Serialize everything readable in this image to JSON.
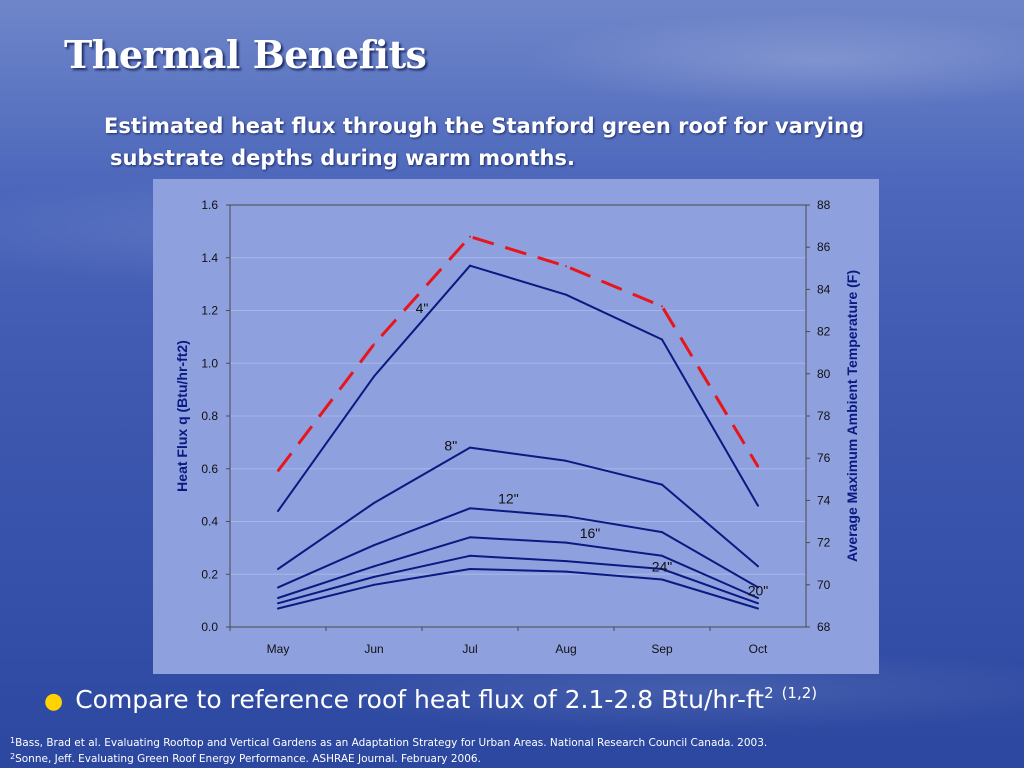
{
  "slide": {
    "title": "Thermal Benefits",
    "subtitle_line1": "Estimated heat flux through the Stanford green roof for varying",
    "subtitle_line2": "substrate depths during warm months.",
    "bullet_text": "Compare to reference roof heat flux of 2.1-2.8 Btu/hr-ft",
    "bullet_exponent": "2",
    "bullet_citation": "(1,2)",
    "references": [
      {
        "num": "1",
        "text": "Bass, Brad et al. Evaluating Rooftop and Vertical Gardens as an Adaptation Strategy for Urban Areas. National Research Council Canada. 2003."
      },
      {
        "num": "2",
        "text": "Sonne, Jeff. Evaluating Green Roof Energy Performance. ASHRAE Journal. February 2006."
      }
    ]
  },
  "chart_data": {
    "type": "line",
    "categories": [
      "May",
      "Jun",
      "Jul",
      "Aug",
      "Sep",
      "Oct"
    ],
    "ylabel": "Heat Flux q (Btu/hr-ft2)",
    "y2label": "Average Maximum Ambient Temperature (F)",
    "ylim": [
      0.0,
      1.6
    ],
    "y2lim": [
      68,
      88
    ],
    "yticks": [
      "0.0",
      "0.2",
      "0.4",
      "0.6",
      "0.8",
      "1.0",
      "1.2",
      "1.4",
      "1.6"
    ],
    "y2ticks": [
      "68",
      "70",
      "72",
      "74",
      "76",
      "78",
      "80",
      "82",
      "84",
      "86",
      "88"
    ],
    "grid": "horizontal",
    "series": [
      {
        "name": "4\"",
        "axis": "left",
        "values": [
          0.44,
          0.95,
          1.37,
          1.26,
          1.09,
          0.46
        ],
        "color": "#0a1a80",
        "dashed": false,
        "label_at": 1.5
      },
      {
        "name": "8\"",
        "axis": "left",
        "values": [
          0.22,
          0.47,
          0.68,
          0.63,
          0.54,
          0.23
        ],
        "color": "#0a1a80",
        "dashed": false,
        "label_at": 1.8
      },
      {
        "name": "12\"",
        "axis": "left",
        "values": [
          0.15,
          0.31,
          0.45,
          0.42,
          0.36,
          0.15
        ],
        "color": "#0a1a80",
        "dashed": false,
        "label_at": 2.4
      },
      {
        "name": "16\"",
        "axis": "left",
        "values": [
          0.11,
          0.23,
          0.34,
          0.32,
          0.27,
          0.11
        ],
        "color": "#0a1a80",
        "dashed": false,
        "label_at": 3.25
      },
      {
        "name": "20\"",
        "axis": "left",
        "values": [
          0.09,
          0.19,
          0.27,
          0.25,
          0.22,
          0.09
        ],
        "color": "#0a1a80",
        "dashed": false,
        "label_at": 5.0
      },
      {
        "name": "24\"",
        "axis": "left",
        "values": [
          0.07,
          0.16,
          0.22,
          0.21,
          0.18,
          0.07
        ],
        "color": "#0a1a80",
        "dashed": false,
        "label_at": 4.0
      },
      {
        "name": "",
        "axis": "right",
        "values": [
          75.4,
          81.4,
          86.5,
          85.1,
          83.2,
          75.6
        ],
        "color": "#e8151b",
        "dashed": true
      }
    ]
  }
}
